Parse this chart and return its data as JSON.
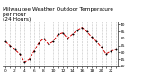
{
  "title": "Milwaukee Weather Outdoor Temperature",
  "title2": "per Hour",
  "title3": "(24 Hours)",
  "hours": [
    0,
    1,
    2,
    3,
    4,
    5,
    6,
    7,
    8,
    9,
    10,
    11,
    12,
    13,
    14,
    15,
    16,
    17,
    18,
    19,
    20,
    21,
    22,
    23
  ],
  "temperatures": [
    28,
    25,
    22,
    19,
    13,
    15,
    21,
    27,
    30,
    26,
    28,
    33,
    34,
    30,
    33,
    36,
    38,
    35,
    31,
    28,
    24,
    19,
    21,
    22
  ],
  "ylim": [
    10,
    42
  ],
  "yticks": [
    10,
    15,
    20,
    25,
    30,
    35,
    40
  ],
  "line_color": "#cc0000",
  "marker_color": "#000000",
  "bg_color": "#ffffff",
  "grid_color": "#888888",
  "title_fontsize": 4.2,
  "tick_fontsize": 3.2,
  "label_every": 2
}
